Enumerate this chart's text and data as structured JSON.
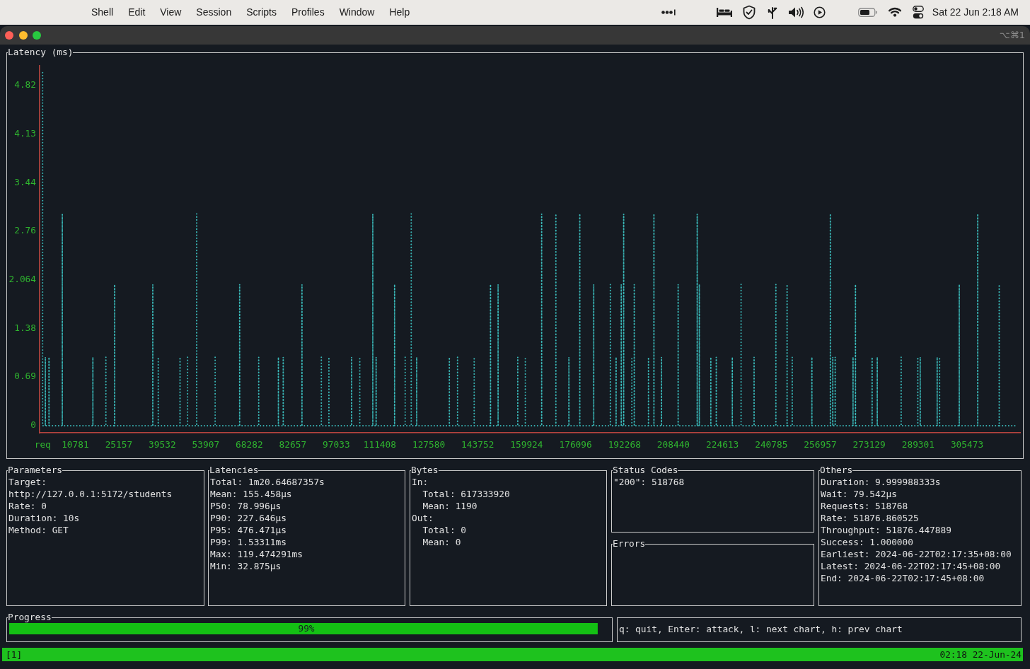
{
  "chart_data": [
    {
      "type": "other",
      "annotations": [
        "Shell",
        "Edit",
        "View",
        "Session",
        "Scripts",
        "Profiles",
        "Window",
        "Help",
        "Sat 22 Jun 2:18 AM"
      ]
    },
    {
      "type": "other",
      "annotations": [
        "⌥⌘1"
      ]
    },
    {
      "type": "line",
      "title": "Latency (ms)",
      "color": "#3ab8b8",
      "marker": "none",
      "line_style": "dotted",
      "x": [
        0,
        0,
        900,
        900,
        900,
        2100,
        2100,
        2100,
        6500,
        6500,
        6500,
        16600,
        16600,
        16600,
        20900,
        20900,
        20900,
        23800,
        23800,
        23800,
        36400,
        36400,
        36400,
        38200,
        38200,
        38200,
        45400,
        45400,
        45400,
        47900,
        47900,
        47900,
        50900,
        50900,
        50900,
        57000,
        57000,
        57000,
        65100,
        65100,
        65100,
        71400,
        71400,
        71400,
        77900,
        77900,
        77900,
        79500,
        79500,
        79500,
        85700,
        85700,
        85700,
        92100,
        92100,
        92100,
        94600,
        94600,
        94600,
        102100,
        102100,
        102100,
        104800,
        104800,
        104800,
        109100,
        109100,
        109100,
        110200,
        110200,
        110200,
        116300,
        116300,
        116300,
        119800,
        119800,
        119800,
        121800,
        121800,
        121800,
        123600,
        123600,
        123600,
        134400,
        134400,
        134400,
        137100,
        137100,
        137100,
        142600,
        142600,
        142600,
        148000,
        148000,
        148000,
        150500,
        150500,
        150500,
        157000,
        157000,
        157000,
        159500,
        159500,
        159500,
        164900,
        164900,
        164900,
        169600,
        169600,
        169600,
        173900,
        173900,
        173900,
        177500,
        177500,
        177500,
        182100,
        182100,
        182100,
        187600,
        187600,
        187600,
        189500,
        189500,
        189500,
        191200,
        191200,
        191200,
        192000,
        192000,
        192000,
        194700,
        194700,
        194700,
        195500,
        195500,
        195500,
        200200,
        200200,
        200200,
        202000,
        202000,
        202000,
        204500,
        204500,
        204500,
        210000,
        210000,
        210000,
        216300,
        216300,
        216300,
        217000,
        217000,
        217000,
        220800,
        220800,
        220800,
        222600,
        222600,
        222600,
        227900,
        227900,
        227900,
        230800,
        230800,
        230800,
        235100,
        235100,
        235100,
        242300,
        242300,
        242300,
        246000,
        246000,
        246000,
        247700,
        247700,
        247700,
        254200,
        254200,
        254200,
        260300,
        260300,
        260300,
        261100,
        261100,
        261100,
        261900,
        261900,
        261900,
        267800,
        267800,
        267800,
        268600,
        268600,
        268600,
        274100,
        274100,
        274100,
        275800,
        275800,
        275800,
        283700,
        283700,
        283700,
        289200,
        289200,
        289200,
        290000,
        290000,
        290000,
        295600,
        295600,
        295600,
        296400,
        296400,
        296400,
        302900,
        302900,
        302900,
        309000,
        309000,
        309000,
        316100,
        316100,
        316100,
        321700
      ],
      "values": [
        5,
        0,
        0,
        0.97,
        0,
        0,
        0.97,
        0,
        0,
        3,
        0,
        0,
        0.97,
        0,
        0,
        0.97,
        0,
        0,
        2,
        0,
        0,
        2,
        0,
        0,
        0.97,
        0,
        0,
        0.97,
        0,
        0,
        0.97,
        0,
        0,
        3,
        0,
        0,
        0.97,
        0,
        0,
        2,
        0,
        0,
        0.97,
        0,
        0,
        0.97,
        0,
        0,
        0.97,
        0,
        0,
        2,
        0,
        0,
        0.97,
        0,
        0,
        0.97,
        0,
        0,
        0.97,
        0,
        0,
        0.97,
        0,
        0,
        3,
        0,
        0,
        0.97,
        0,
        0,
        2,
        0,
        0,
        0.97,
        0,
        0,
        3,
        0,
        0,
        0.97,
        0,
        0,
        0.97,
        0,
        0,
        0.97,
        0,
        0,
        0.97,
        0,
        0,
        2,
        0,
        0,
        2,
        0,
        0,
        0.97,
        0,
        0,
        0.97,
        0,
        0,
        3,
        0,
        0,
        3,
        0,
        0,
        0.97,
        0,
        0,
        3,
        0,
        0,
        2,
        0,
        0,
        2,
        0,
        0,
        0.97,
        0,
        0,
        2,
        0,
        0,
        3,
        0,
        0,
        0.97,
        0,
        0,
        2,
        0,
        0,
        0.97,
        0,
        0,
        3,
        0,
        0,
        0.97,
        0,
        0,
        2,
        0,
        0,
        3,
        0,
        0,
        2,
        0,
        0,
        0.97,
        0,
        0,
        0.97,
        0,
        0,
        0.97,
        0,
        0,
        2,
        0,
        0,
        0.97,
        0,
        0,
        2,
        0,
        0,
        2,
        0,
        0,
        0.97,
        0,
        0,
        0.97,
        0,
        0,
        3,
        0,
        0,
        0.97,
        0,
        0,
        0.97,
        0,
        0,
        0.97,
        0,
        0,
        2,
        0,
        0,
        0.97,
        0,
        0,
        0.97,
        0,
        0,
        0.97,
        0,
        0,
        0.97,
        0,
        0,
        0.97,
        0,
        0,
        0.97,
        0,
        0,
        0.97,
        0,
        0,
        2,
        0,
        0,
        3,
        0,
        0,
        2,
        0,
        0
      ],
      "xlim": [
        -1000,
        323000
      ],
      "ylim": [
        -0.1,
        5.1
      ],
      "xticks": [
        {
          "value": 0,
          "label": "req"
        },
        10781,
        25157,
        39532,
        53907,
        68282,
        82657,
        97033,
        111408,
        127580,
        143752,
        159924,
        176096,
        192268,
        208440,
        224613,
        240785,
        256957,
        273129,
        289301,
        305473
      ],
      "yticks": [
        0,
        0.69,
        1.38,
        2.064,
        2.76,
        3.44,
        4.13,
        4.82
      ]
    },
    {
      "type": "other",
      "title": "Parameters",
      "annotations": [
        "Target:",
        "http://127.0.0.1:5172/students",
        "Rate: 0",
        "Duration: 10s",
        "Method: GET"
      ]
    },
    {
      "type": "other",
      "title": "Latencies",
      "annotations": [
        "Total: 1m20.64687357s",
        "Mean: 155.458µs",
        "P50: 78.996µs",
        "P90: 227.646µs",
        "P95: 476.471µs",
        "P99: 1.53311ms",
        "Max: 119.474291ms",
        "Min: 32.875µs"
      ]
    },
    {
      "type": "other",
      "title": "Bytes",
      "annotations": [
        "In:",
        "  Total: 617333920",
        "  Mean: 1190",
        "Out:",
        "  Total: 0",
        "  Mean: 0"
      ]
    },
    {
      "type": "other",
      "title": "Status Codes",
      "annotations": [
        "\"200\": 518768"
      ]
    },
    {
      "type": "other",
      "title": "Errors"
    },
    {
      "type": "other",
      "title": "Others",
      "annotations": [
        "Duration: 9.999988333s",
        "Wait: 79.542µs",
        "Requests: 518768",
        "Rate: 51876.860525",
        "Throughput: 51876.447889",
        "Success: 1.000000",
        "Earliest: 2024-06-22T02:17:35+08:00",
        "Latest: 2024-06-22T02:17:45+08:00",
        "End: 2024-06-22T02:17:45+08:00"
      ]
    },
    {
      "type": "bar",
      "title": "Progress",
      "orientation": "horizontal",
      "categories": [
        null
      ],
      "values": [
        99
      ],
      "value_labels": [
        "99%"
      ],
      "color": "#14c014",
      "tick_labels": false
    },
    {
      "type": "other",
      "annotations": [
        "q: quit, Enter: attack, l: next chart, h: prev chart"
      ]
    },
    {
      "type": "other",
      "annotations": [
        "[1]",
        "02:18 22-Jun-24"
      ]
    }
  ]
}
